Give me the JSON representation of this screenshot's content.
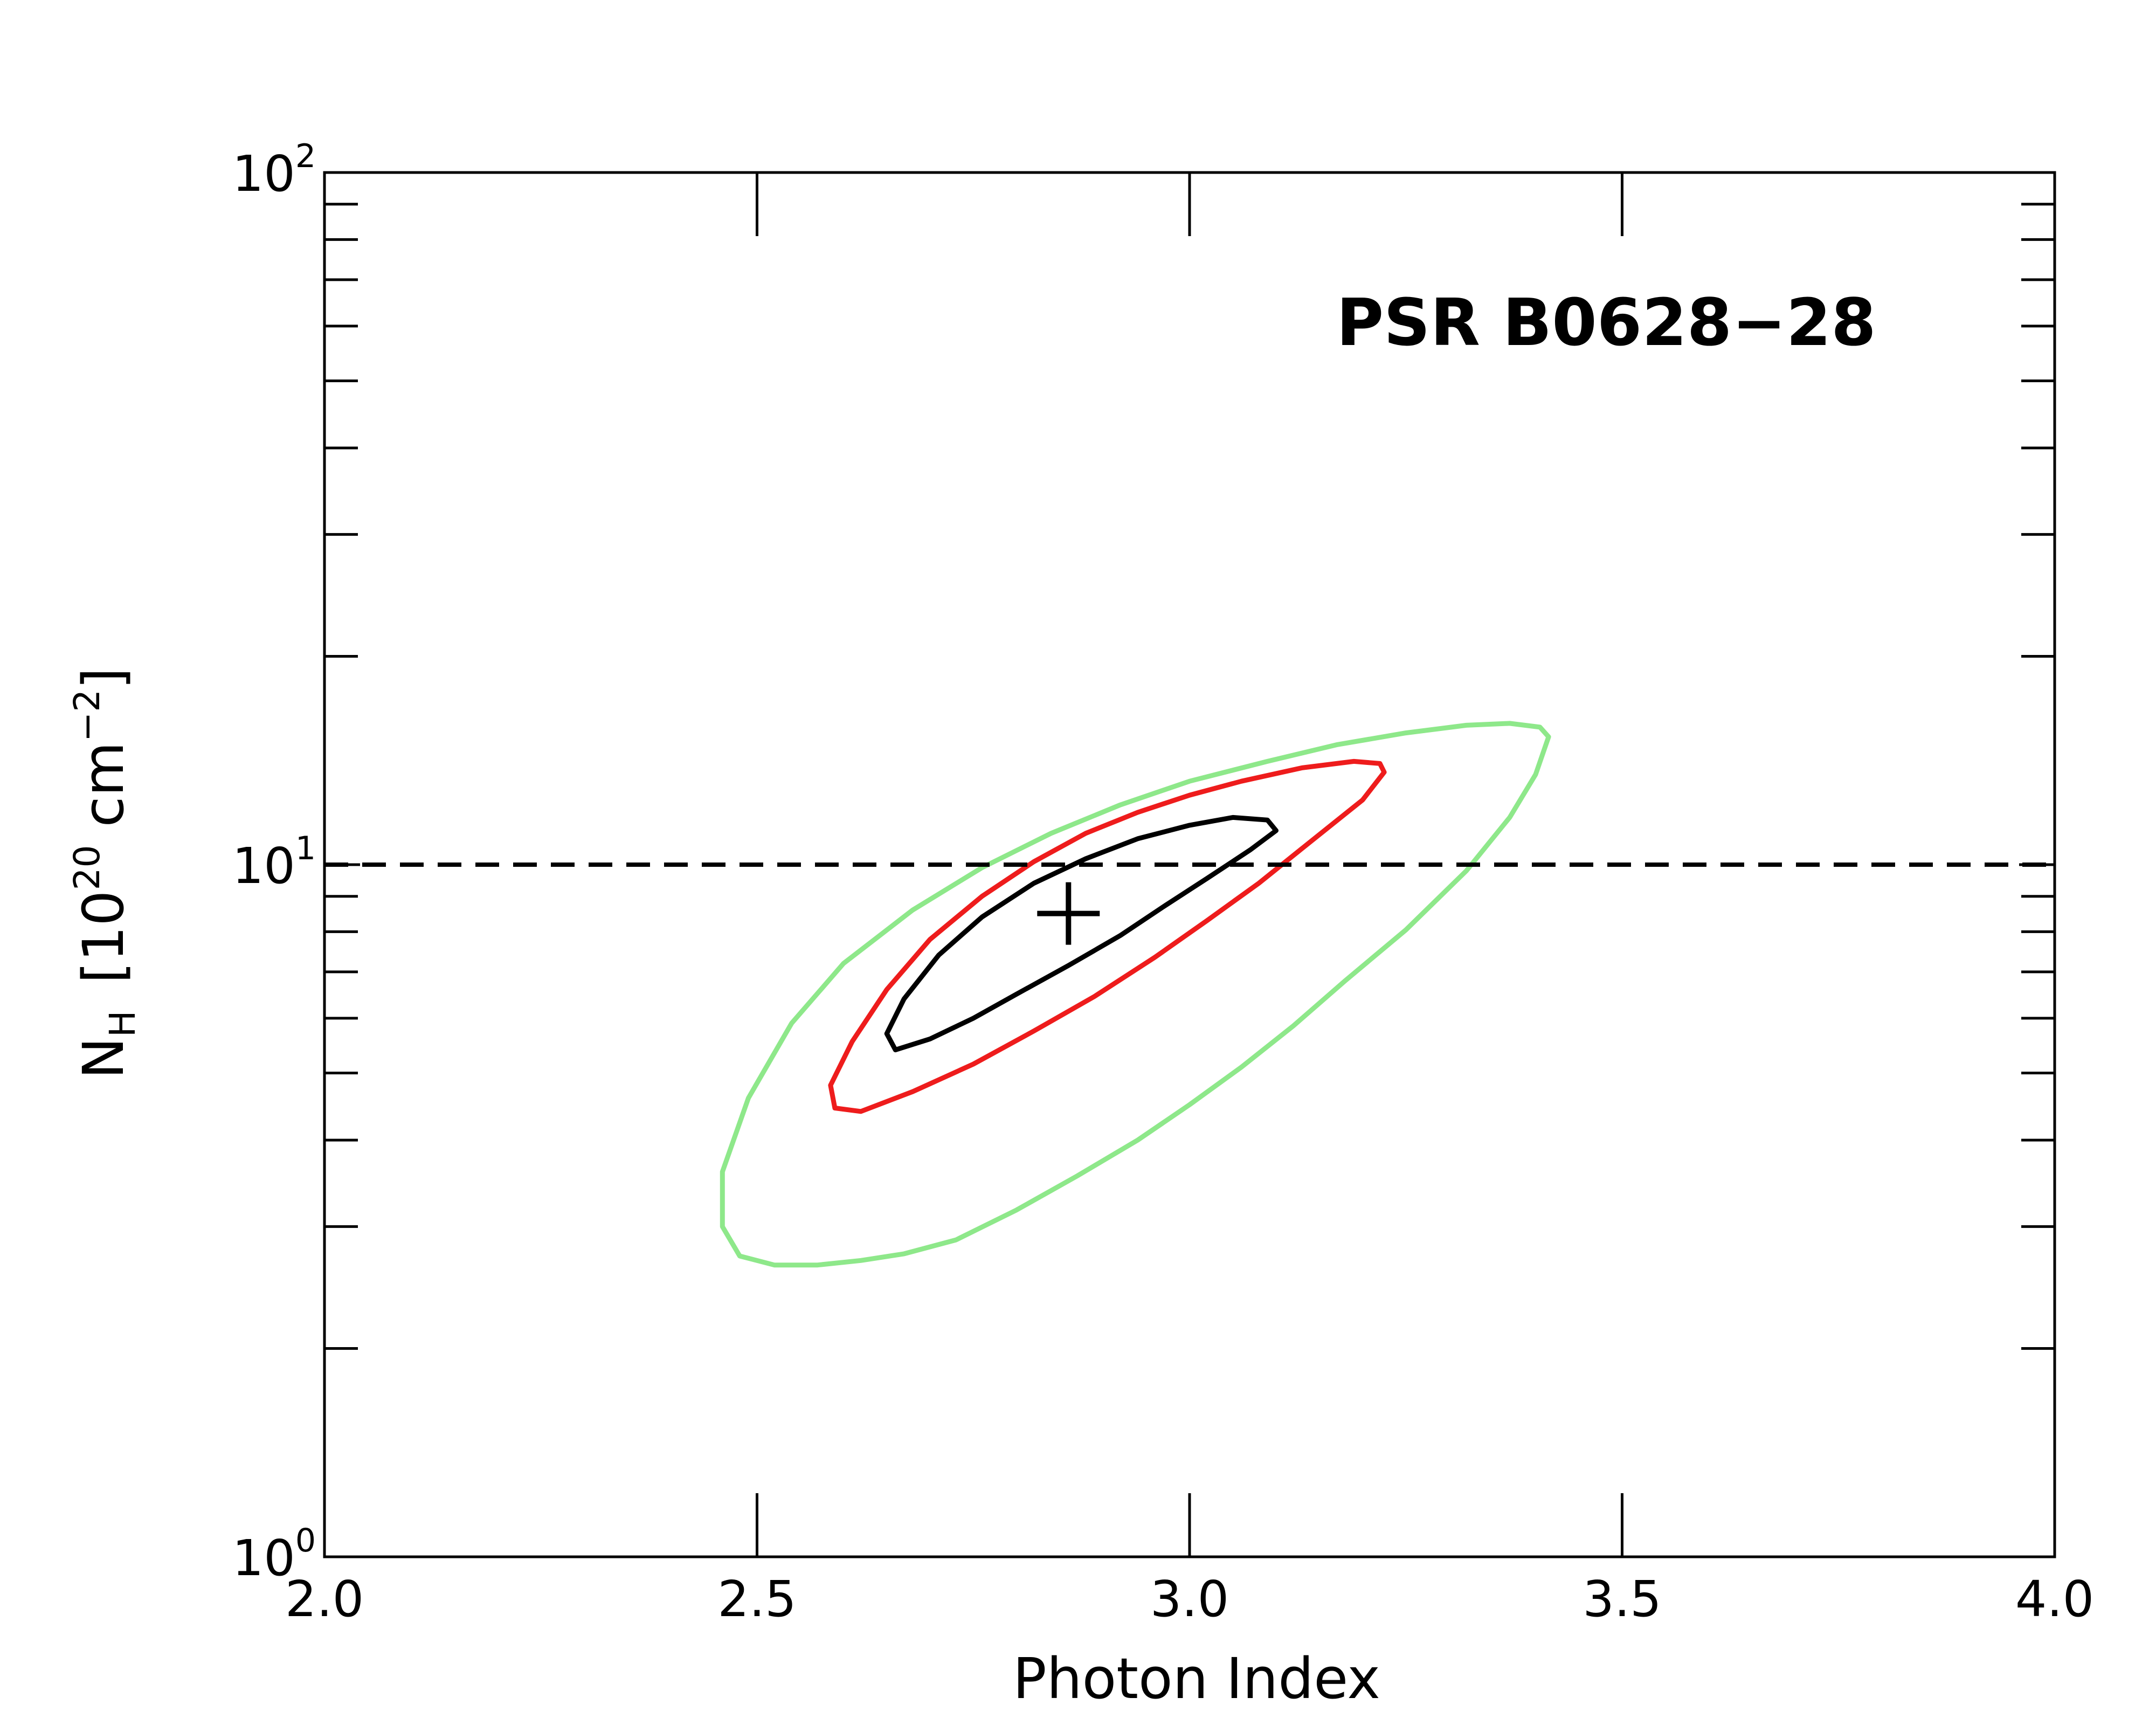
{
  "chart_data": {
    "type": "contour",
    "annotation": "PSR B0628−28",
    "xlabel": "Photon Index",
    "ylabel": {
      "main": "N",
      "sub": "H",
      "unit_open": "[10",
      "unit_exp1": "20",
      "unit_mid": " cm",
      "unit_exp2": "−2",
      "unit_close": "]"
    },
    "x_axis": {
      "scale": "linear",
      "range": [
        2.0,
        4.0
      ],
      "major_ticks": [
        2.0,
        2.5,
        3.0,
        3.5,
        4.0
      ],
      "tick_labels": [
        "2.0",
        "2.5",
        "3.0",
        "3.5",
        "4.0"
      ]
    },
    "y_axis": {
      "scale": "log",
      "range": [
        1,
        100
      ],
      "major_ticks": [
        {
          "value": 1,
          "base": "10",
          "exp": "0"
        },
        {
          "value": 10,
          "base": "10",
          "exp": "1"
        },
        {
          "value": 100,
          "base": "10",
          "exp": "2"
        }
      ],
      "minor_ticks": [
        2,
        3,
        4,
        5,
        6,
        7,
        8,
        9,
        20,
        30,
        40,
        50,
        60,
        70,
        80,
        90
      ]
    },
    "reference_line": {
      "y": 10.0,
      "style": "dashed",
      "color": "#000000"
    },
    "best_fit": {
      "x": 2.86,
      "y": 8.5
    },
    "contours": [
      {
        "color": "#8ee88a",
        "points": [
          [
            2.62,
            2.68
          ],
          [
            2.67,
            2.74
          ],
          [
            2.73,
            2.87
          ],
          [
            2.8,
            3.17
          ],
          [
            2.87,
            3.55
          ],
          [
            2.94,
            4.0
          ],
          [
            3.0,
            4.5
          ],
          [
            3.06,
            5.1
          ],
          [
            3.12,
            5.85
          ],
          [
            3.18,
            6.8
          ],
          [
            3.25,
            8.05
          ],
          [
            3.32,
            9.8
          ],
          [
            3.37,
            11.7
          ],
          [
            3.4,
            13.5
          ],
          [
            3.415,
            15.3
          ],
          [
            3.405,
            15.8
          ],
          [
            3.37,
            16.0
          ],
          [
            3.32,
            15.9
          ],
          [
            3.25,
            15.5
          ],
          [
            3.17,
            14.9
          ],
          [
            3.09,
            14.1
          ],
          [
            3.0,
            13.2
          ],
          [
            2.92,
            12.2
          ],
          [
            2.84,
            11.1
          ],
          [
            2.76,
            9.9
          ],
          [
            2.68,
            8.6
          ],
          [
            2.6,
            7.2
          ],
          [
            2.54,
            5.9
          ],
          [
            2.49,
            4.6
          ],
          [
            2.46,
            3.6
          ],
          [
            2.46,
            3.0
          ],
          [
            2.48,
            2.72
          ],
          [
            2.52,
            2.64
          ],
          [
            2.57,
            2.64
          ],
          [
            2.62,
            2.68
          ]
        ]
      },
      {
        "color": "#ee1c1c",
        "points": [
          [
            2.62,
            4.4
          ],
          [
            2.68,
            4.7
          ],
          [
            2.75,
            5.15
          ],
          [
            2.82,
            5.75
          ],
          [
            2.89,
            6.45
          ],
          [
            2.96,
            7.35
          ],
          [
            3.02,
            8.3
          ],
          [
            3.08,
            9.4
          ],
          [
            3.14,
            10.8
          ],
          [
            3.2,
            12.4
          ],
          [
            3.225,
            13.6
          ],
          [
            3.22,
            14.0
          ],
          [
            3.19,
            14.1
          ],
          [
            3.13,
            13.8
          ],
          [
            3.06,
            13.2
          ],
          [
            3.0,
            12.6
          ],
          [
            2.94,
            11.9
          ],
          [
            2.88,
            11.1
          ],
          [
            2.82,
            10.1
          ],
          [
            2.76,
            9.0
          ],
          [
            2.7,
            7.8
          ],
          [
            2.65,
            6.6
          ],
          [
            2.61,
            5.55
          ],
          [
            2.585,
            4.8
          ],
          [
            2.59,
            4.45
          ],
          [
            2.62,
            4.4
          ]
        ]
      },
      {
        "color": "#000000",
        "points": [
          [
            2.66,
            5.4
          ],
          [
            2.7,
            5.6
          ],
          [
            2.75,
            6.0
          ],
          [
            2.8,
            6.5
          ],
          [
            2.86,
            7.15
          ],
          [
            2.92,
            7.9
          ],
          [
            2.97,
            8.7
          ],
          [
            3.02,
            9.55
          ],
          [
            3.07,
            10.5
          ],
          [
            3.1,
            11.2
          ],
          [
            3.09,
            11.6
          ],
          [
            3.05,
            11.7
          ],
          [
            3.0,
            11.4
          ],
          [
            2.94,
            10.9
          ],
          [
            2.88,
            10.2
          ],
          [
            2.82,
            9.4
          ],
          [
            2.76,
            8.4
          ],
          [
            2.71,
            7.4
          ],
          [
            2.67,
            6.4
          ],
          [
            2.65,
            5.7
          ],
          [
            2.66,
            5.4
          ]
        ]
      }
    ],
    "colors": {
      "axis": "#000000",
      "background": "#ffffff"
    }
  }
}
